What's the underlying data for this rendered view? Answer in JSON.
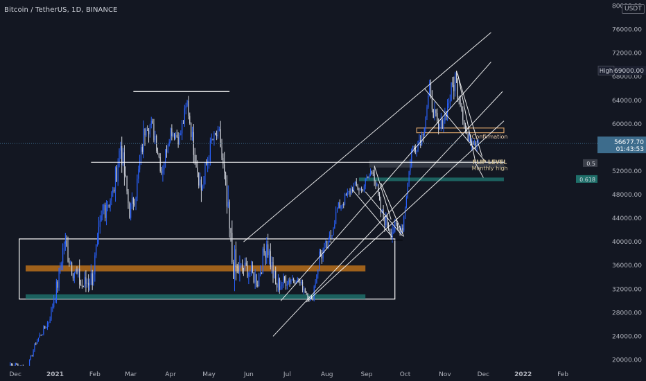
{
  "header": {
    "symbol_title": "Bitcoin / TetherUS, 1D, BINANCE",
    "currency_badge": "USDT"
  },
  "colors": {
    "background": "#131722",
    "candle_up": "#2962ff",
    "candle_down": "#d1d4dc",
    "trendline": "#ffffff",
    "orange_zone": "#b86e1a",
    "teal_zone": "#1f6f6a",
    "current_price_bg": "#3d6c8c",
    "grid": "#1e222d"
  },
  "chart_data": {
    "type": "candlestick",
    "title": "Bitcoin / TetherUS, 1D, BINANCE",
    "y_axis": {
      "ylim": [
        19000,
        81000
      ],
      "ticks": [
        20000,
        24000,
        28000,
        32000,
        36000,
        40000,
        44000,
        48000,
        52000,
        56000,
        60000,
        64000,
        68000,
        72000,
        76000,
        80000
      ],
      "tick_labels": [
        "20000.00",
        "24000.00",
        "28000.00",
        "32000.00",
        "36000.00",
        "40000.00",
        "44000.00",
        "48000.00",
        "52000.00",
        "56000.00",
        "60000.00",
        "64000.00",
        "68000.00",
        "72000.00",
        "76000.00",
        "80000.00"
      ]
    },
    "x_axis": {
      "tick_labels": [
        "Dec",
        "2021",
        "Feb",
        "Mar",
        "Apr",
        "May",
        "Jun",
        "Jul",
        "Aug",
        "Sep",
        "Oct",
        "Nov",
        "Dec",
        "2022",
        "Feb"
      ],
      "tick_dates": [
        "2020-12-01",
        "2021-01-01",
        "2021-02-01",
        "2021-03-01",
        "2021-04-01",
        "2021-05-01",
        "2021-06-01",
        "2021-07-01",
        "2021-08-01",
        "2021-09-01",
        "2021-10-01",
        "2021-11-01",
        "2021-12-01",
        "2022-01-01",
        "2022-02-01"
      ],
      "range": [
        "2020-11-19",
        "2022-02-28"
      ]
    },
    "price_series": {
      "name": "BTCUSDT",
      "dates": [
        "2020-11-20",
        "2020-12-01",
        "2020-12-10",
        "2020-12-17",
        "2020-12-27",
        "2021-01-03",
        "2021-01-08",
        "2021-01-14",
        "2021-01-22",
        "2021-01-30",
        "2021-02-08",
        "2021-02-15",
        "2021-02-21",
        "2021-02-28",
        "2021-03-05",
        "2021-03-13",
        "2021-03-20",
        "2021-03-25",
        "2021-04-01",
        "2021-04-08",
        "2021-04-14",
        "2021-04-19",
        "2021-04-25",
        "2021-05-03",
        "2021-05-09",
        "2021-05-13",
        "2021-05-19",
        "2021-05-23",
        "2021-05-30",
        "2021-06-08",
        "2021-06-15",
        "2021-06-22",
        "2021-07-01",
        "2021-07-08",
        "2021-07-15",
        "2021-07-20",
        "2021-07-26",
        "2021-08-02",
        "2021-08-09",
        "2021-08-14",
        "2021-08-22",
        "2021-08-28",
        "2021-09-06",
        "2021-09-12",
        "2021-09-20",
        "2021-09-29",
        "2021-10-06",
        "2021-10-14",
        "2021-10-20",
        "2021-10-27",
        "2021-11-01",
        "2021-11-09",
        "2021-11-13",
        "2021-11-19",
        "2021-11-24",
        "2021-11-27"
      ],
      "close": [
        18500,
        19200,
        18300,
        23000,
        26500,
        33000,
        40000,
        36000,
        32500,
        34000,
        46000,
        48000,
        56500,
        45000,
        48500,
        61000,
        58000,
        52000,
        59000,
        57500,
        63500,
        56000,
        49000,
        57000,
        58500,
        50000,
        37000,
        35000,
        35500,
        33500,
        40000,
        32500,
        33500,
        33800,
        31800,
        29800,
        37500,
        39500,
        45500,
        47000,
        49500,
        48800,
        52500,
        45000,
        42000,
        42500,
        55500,
        58000,
        65500,
        58500,
        61500,
        67800,
        64000,
        57000,
        57500,
        56677.7
      ],
      "high": [
        19000,
        19800,
        19300,
        23800,
        28500,
        34500,
        42000,
        40000,
        36000,
        38500,
        47000,
        52500,
        58400,
        47500,
        51500,
        61800,
        61800,
        56000,
        60500,
        60000,
        64900,
        57500,
        54500,
        58000,
        59500,
        58000,
        43500,
        39000,
        37500,
        37000,
        41300,
        35500,
        36000,
        35000,
        33500,
        32000,
        40500,
        42500,
        46500,
        48000,
        50500,
        49500,
        52900,
        47000,
        45500,
        44000,
        56000,
        59000,
        67000,
        62500,
        63000,
        69000,
        65500,
        59500,
        59200,
        59000
      ],
      "low": [
        17500,
        18000,
        18000,
        22000,
        26000,
        29000,
        36000,
        33000,
        30000,
        32000,
        38000,
        46000,
        50000,
        43000,
        46000,
        54000,
        56000,
        51000,
        57000,
        55500,
        60000,
        52000,
        47000,
        53000,
        56500,
        47000,
        30000,
        31500,
        33000,
        31000,
        34500,
        28800,
        32500,
        32500,
        31000,
        29300,
        34000,
        38000,
        43000,
        44500,
        47500,
        46500,
        48500,
        43000,
        40000,
        41000,
        51000,
        54000,
        61000,
        58000,
        59000,
        61000,
        61000,
        55600,
        55500,
        53300
      ]
    },
    "high_value": 69000,
    "current_price": 56677.7,
    "current_price_label": "56677.70",
    "countdown_label": "01:43:53",
    "high_label": "High",
    "high_value_label": "69000.00",
    "zones": [
      {
        "name": "range-box",
        "x0": "2020-12-04",
        "x1": "2021-09-23",
        "y0": 30300,
        "y1": 40500,
        "color": "#ffffff",
        "filled": false
      },
      {
        "name": "orange-zone",
        "x0": "2020-12-09",
        "x1": "2021-08-31",
        "y0": 35000,
        "y1": 36000,
        "color": "#b86e1a",
        "filled": true
      },
      {
        "name": "teal-zone",
        "x0": "2020-12-09",
        "x1": "2021-08-31",
        "y0": 30300,
        "y1": 31100,
        "color": "#1f6f6a",
        "filled": true
      },
      {
        "name": "confirmation-zone",
        "x0": "2021-10-10",
        "x1": "2021-12-17",
        "y0": 58500,
        "y1": 59300,
        "color": "#d7a26a",
        "filled": false
      },
      {
        "name": "flip-zone",
        "x0": "2021-09-03",
        "x1": "2021-12-17",
        "y0": 52600,
        "y1": 53800,
        "color": "#3b3f4a",
        "filled": true
      },
      {
        "name": "fib-618-zone",
        "x0": "2021-08-26",
        "x1": "2021-12-17",
        "y0": 50300,
        "y1": 50900,
        "color": "#1f6f6a",
        "filled": true
      }
    ],
    "horizontal_lines": [
      {
        "name": "april-top-line",
        "x0": "2021-03-03",
        "x1": "2021-05-17",
        "y": 65500
      },
      {
        "name": "flip-level-line",
        "x0": "2021-01-29",
        "x1": "2021-12-17",
        "y": 53500
      },
      {
        "name": "range-top-dark-line",
        "x0": "2021-06-13",
        "x1": "2021-09-29",
        "y": 40300
      }
    ],
    "trendlines": [
      {
        "name": "channel-upper",
        "x0": "2021-05-28",
        "y0": 40000,
        "x1": "2021-12-07",
        "y1": 75500
      },
      {
        "name": "channel-middle",
        "x0": "2021-06-26",
        "y0": 30000,
        "x1": "2021-12-07",
        "y1": 70500
      },
      {
        "name": "channel-lower",
        "x0": "2021-06-20",
        "y0": 24000,
        "x1": "2021-12-16",
        "y1": 65500
      },
      {
        "name": "channel-lowest",
        "x0": "2021-07-16",
        "y0": 29800,
        "x1": "2021-12-17",
        "y1": 60500
      },
      {
        "name": "wedge-upper",
        "x0": "2021-09-07",
        "y0": 52900,
        "x1": "2021-09-20",
        "y1": 43800
      },
      {
        "name": "wedge-lower",
        "x0": "2021-08-31",
        "y0": 48500,
        "x1": "2021-09-29",
        "y1": 41000
      },
      {
        "name": "triangle-left",
        "x0": "2021-08-21",
        "y0": 48800,
        "x1": "2021-09-21",
        "y1": 40800
      },
      {
        "name": "triangle-right",
        "x0": "2021-09-12",
        "y0": 50000,
        "x1": "2021-09-30",
        "y1": 40900
      },
      {
        "name": "nov-wedge-upper",
        "x0": "2021-11-10",
        "y0": 69000,
        "x1": "2021-11-30",
        "y1": 54500
      },
      {
        "name": "nov-wedge-lower",
        "x0": "2021-10-16",
        "y0": 66000,
        "x1": "2021-12-03",
        "y1": 53500
      },
      {
        "name": "nov-drop-line",
        "x0": "2021-11-11",
        "y0": 68500,
        "x1": "2021-11-25",
        "y1": 53300
      },
      {
        "name": "nov-support-drop",
        "x0": "2021-11-25",
        "y0": 53300,
        "x1": "2021-12-01",
        "y1": 50900
      }
    ],
    "annotations": [
      {
        "text": "Confirmation",
        "date": "2021-12-06",
        "y": 57500,
        "color": "#e8c9a8"
      },
      {
        "text": "FLIP LEVEL",
        "date": "2021-12-06",
        "y": 53200,
        "color": "#d6c59a"
      },
      {
        "text": "Monthly high",
        "date": "2021-12-06",
        "y": 52200,
        "color": "#d6c59a"
      }
    ],
    "side_labels": [
      {
        "text": "0.5",
        "y": 53300
      },
      {
        "text": "0.618",
        "y": 50600
      }
    ],
    "grid": false,
    "legend": "none"
  }
}
